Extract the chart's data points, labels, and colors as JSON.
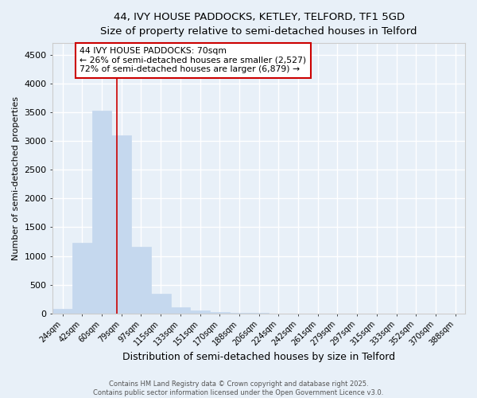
{
  "title_line1": "44, IVY HOUSE PADDOCKS, KETLEY, TELFORD, TF1 5GD",
  "title_line2": "Size of property relative to semi-detached houses in Telford",
  "categories": [
    "24sqm",
    "42sqm",
    "60sqm",
    "79sqm",
    "97sqm",
    "115sqm",
    "133sqm",
    "151sqm",
    "170sqm",
    "188sqm",
    "206sqm",
    "224sqm",
    "242sqm",
    "261sqm",
    "279sqm",
    "297sqm",
    "315sqm",
    "333sqm",
    "352sqm",
    "370sqm",
    "388sqm"
  ],
  "values": [
    80,
    1230,
    3520,
    3100,
    1165,
    350,
    110,
    55,
    30,
    15,
    8,
    0,
    0,
    0,
    0,
    0,
    0,
    0,
    0,
    0,
    0
  ],
  "bar_color": "#c5d8ee",
  "bar_edge_color": "#c5d8ee",
  "background_color": "#e8f0f8",
  "grid_color": "#ffffff",
  "red_line_x": 2.78,
  "red_line_color": "#cc0000",
  "ylabel": "Number of semi-detached properties",
  "xlabel": "Distribution of semi-detached houses by size in Telford",
  "ylim": [
    0,
    4700
  ],
  "yticks": [
    0,
    500,
    1000,
    1500,
    2000,
    2500,
    3000,
    3500,
    4000,
    4500
  ],
  "annotation_title": "44 IVY HOUSE PADDOCKS: 70sqm",
  "annotation_line1": "← 26% of semi-detached houses are smaller (2,527)",
  "annotation_line2": "72% of semi-detached houses are larger (6,879) →",
  "annotation_box_color": "#ffffff",
  "annotation_border_color": "#cc0000",
  "footer_line1": "Contains HM Land Registry data © Crown copyright and database right 2025.",
  "footer_line2": "Contains public sector information licensed under the Open Government Licence v3.0."
}
